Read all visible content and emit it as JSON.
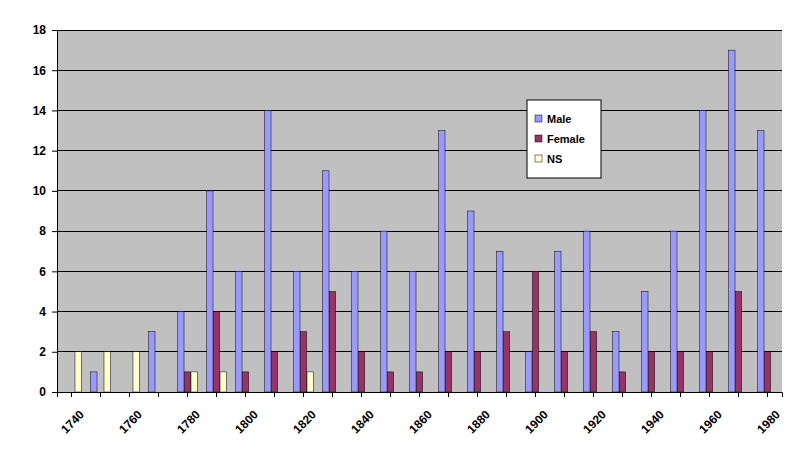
{
  "chart_data": {
    "type": "bar",
    "categories": [
      "1740",
      null,
      "1760",
      null,
      "1780",
      null,
      "1800",
      null,
      "1820",
      null,
      "1840",
      null,
      "1860",
      null,
      "1880",
      null,
      "1900",
      null,
      "1920",
      null,
      "1940",
      null,
      "1960",
      null,
      "1980"
    ],
    "series": [
      {
        "name": "Male",
        "color": "#9999ff",
        "values": [
          0,
          1,
          0,
          3,
          4,
          10,
          6,
          14,
          6,
          11,
          6,
          8,
          6,
          13,
          9,
          7,
          2,
          7,
          8,
          3,
          5,
          8,
          14,
          17,
          13
        ]
      },
      {
        "name": "Female",
        "color": "#993366",
        "values": [
          0,
          0,
          0,
          0,
          1,
          4,
          1,
          2,
          3,
          5,
          2,
          1,
          1,
          2,
          2,
          3,
          6,
          2,
          3,
          1,
          2,
          2,
          2,
          5,
          2
        ]
      },
      {
        "name": "NS",
        "color": "#ffffcc",
        "values": [
          2,
          2,
          2,
          0,
          1,
          1,
          0,
          0,
          1,
          0,
          0,
          0,
          0,
          0,
          0,
          0,
          0,
          0,
          0,
          0,
          0,
          0,
          0,
          0,
          0
        ]
      }
    ],
    "ylim": [
      0,
      18
    ],
    "yticks": [
      0,
      2,
      4,
      6,
      8,
      10,
      12,
      14,
      16,
      18
    ],
    "grid": true,
    "legend": "right"
  }
}
